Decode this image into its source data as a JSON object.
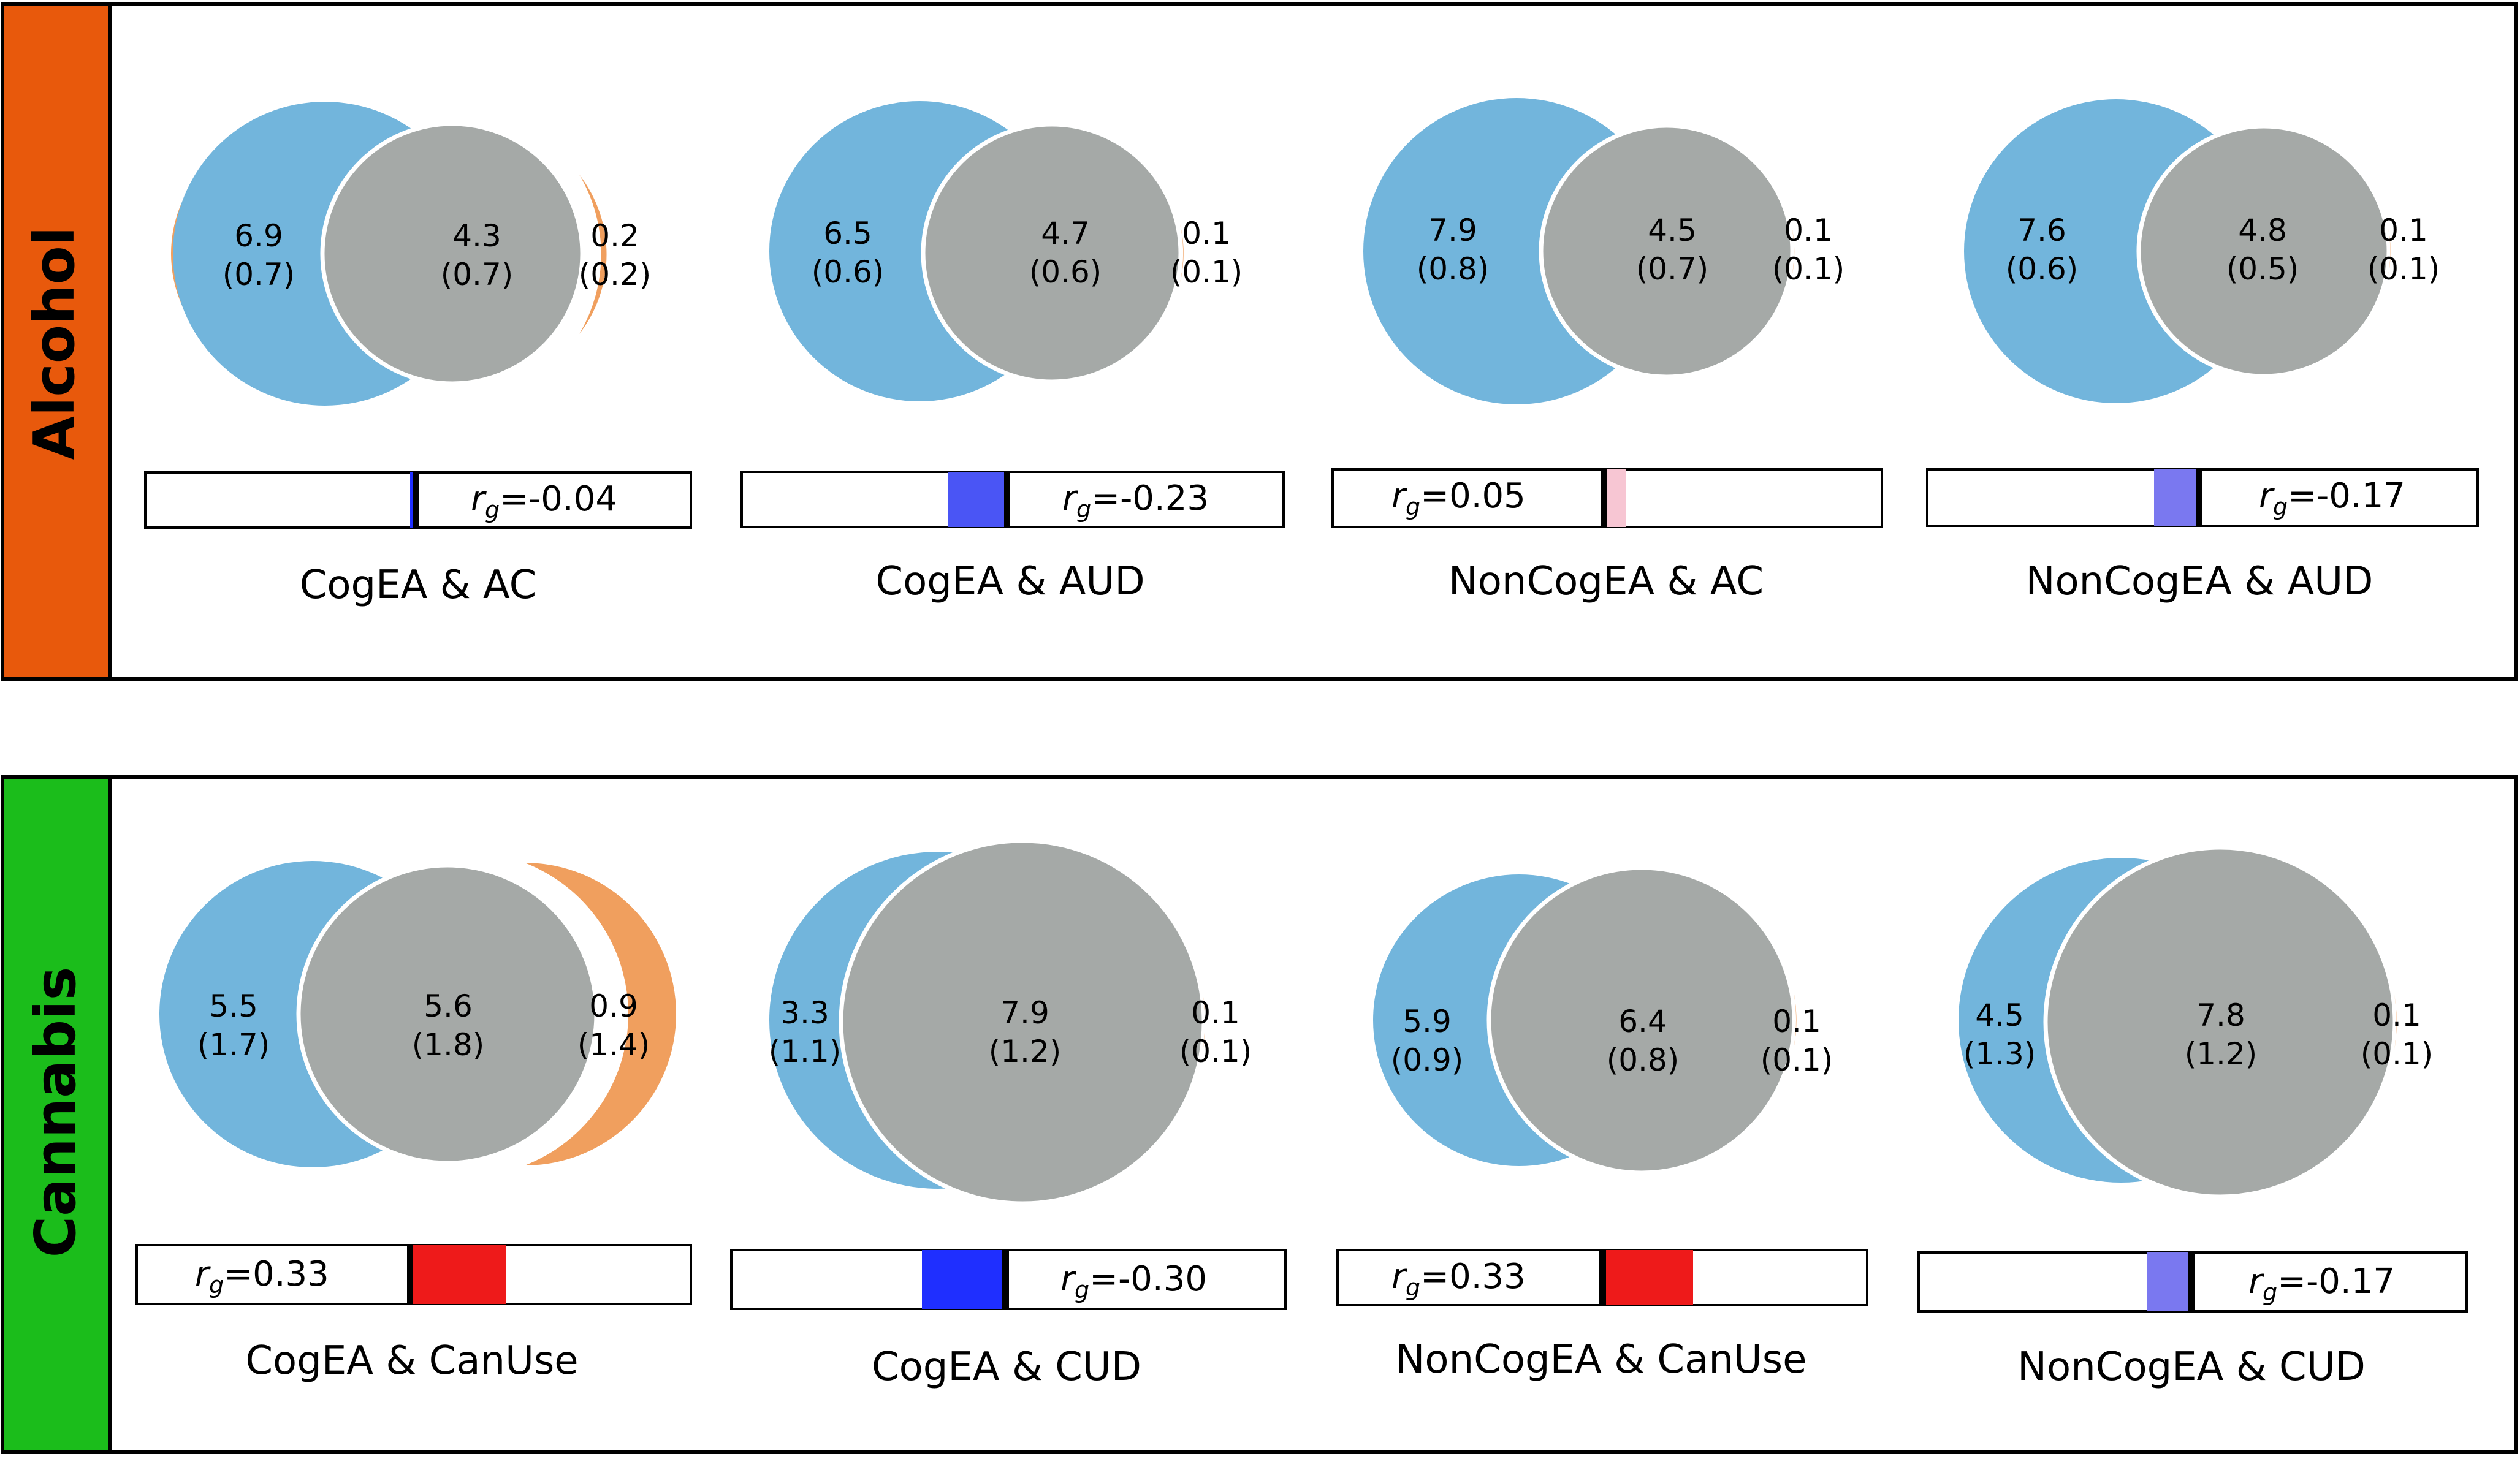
{
  "colors": {
    "blue_circle": "#72b5dc",
    "overlap_gray": "#a5a9a7",
    "orange_circle": "#f09f5e",
    "alcohol_tab": "#e8590c",
    "cannabis_tab": "#1bbd1b",
    "negative_strong": "#1f2fff",
    "negative_medium": "#4a55f5",
    "negative_light": "#7a78f0",
    "positive_strong": "#ee1a1a",
    "positive_light": "#f7c6d3"
  },
  "groups": [
    {
      "label": "Alcohol",
      "tab_color": "#e8590c",
      "items": [
        {
          "title": "CogEA & AC",
          "left_val": "6.9",
          "left_se": "(0.7)",
          "mid_val": "4.3",
          "mid_se": "(0.7)",
          "right_val": "0.2",
          "right_se": "(0.2)",
          "rg_sub": "g",
          "rg_value": "=-0.04",
          "rg": -0.04,
          "bar_color": "#1f2fff",
          "blue_r": 0.1,
          "gray_r": 0.055,
          "orange_r": 0.0
        },
        {
          "title": "CogEA & AUD",
          "left_val": "6.5",
          "left_se": "(0.6)",
          "mid_val": "4.7",
          "mid_se": "(0.6)",
          "right_val": "0.1",
          "right_se": "(0.1)",
          "rg_sub": "g",
          "rg_value": "=-0.23",
          "rg": -0.23,
          "bar_color": "#4a55f5"
        },
        {
          "title": "NonCogEA & AC",
          "left_val": "7.9",
          "left_se": "(0.8)",
          "mid_val": "4.5",
          "mid_se": "(0.7)",
          "right_val": "0.1",
          "right_se": "(0.1)",
          "rg_sub": "g",
          "rg_value": "=0.05",
          "rg": 0.05,
          "bar_color": "#f7c6d3"
        },
        {
          "title": "NonCogEA & AUD",
          "left_val": "7.6",
          "left_se": "(0.6)",
          "mid_val": "4.8",
          "mid_se": "(0.5)",
          "right_val": "0.1",
          "right_se": "(0.1)",
          "rg_sub": "g",
          "rg_value": "=-0.17",
          "rg": -0.17,
          "bar_color": "#7a78f0"
        }
      ]
    },
    {
      "label": "Cannabis",
      "tab_color": "#1bbd1b",
      "items": [
        {
          "title": "CogEA & CanUse",
          "left_val": "5.5",
          "left_se": "(1.7)",
          "mid_val": "5.6",
          "mid_se": "(1.8)",
          "right_val": "0.9",
          "right_se": "(1.4)",
          "rg_sub": "g",
          "rg_value": "=0.33",
          "rg": 0.33,
          "bar_color": "#ee1a1a"
        },
        {
          "title": "CogEA & CUD",
          "left_val": "3.3",
          "left_se": "(1.1)",
          "mid_val": "7.9",
          "mid_se": "(1.2)",
          "right_val": "0.1",
          "right_se": "(0.1)",
          "rg_sub": "g",
          "rg_value": "=-0.30",
          "rg": -0.3,
          "bar_color": "#1f2fff"
        },
        {
          "title": "NonCogEA & CanUse",
          "left_val": "5.9",
          "left_se": "(0.9)",
          "mid_val": "6.4",
          "mid_se": "(0.8)",
          "right_val": "0.1",
          "right_se": "(0.1)",
          "rg_sub": "g",
          "rg_value": "=0.33",
          "rg": 0.33,
          "bar_color": "#ee1a1a"
        },
        {
          "title": "NonCogEA & CUD",
          "left_val": "4.5",
          "left_se": "(1.3)",
          "mid_val": "7.8",
          "mid_se": "(1.2)",
          "right_val": "0.1",
          "right_se": "(0.1)",
          "rg_sub": "g",
          "rg_value": "=-0.17",
          "rg": -0.17,
          "bar_color": "#7a78f0"
        }
      ]
    }
  ]
}
